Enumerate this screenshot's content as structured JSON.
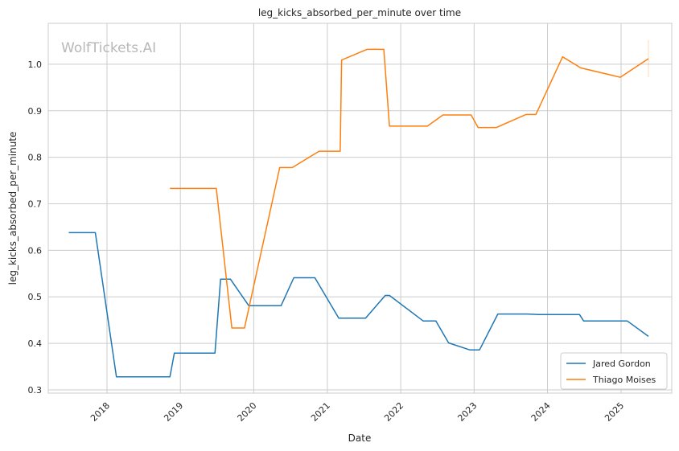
{
  "chart_data": {
    "type": "line",
    "title": "leg_kicks_absorbed_per_minute over time",
    "xlabel": "Date",
    "ylabel": "leg_kicks_absorbed_per_minute",
    "watermark": "WolfTickets.AI",
    "x_ticks": [
      "2018",
      "2019",
      "2020",
      "2021",
      "2022",
      "2023",
      "2024",
      "2025"
    ],
    "y_ticks": [
      "0.3",
      "0.4",
      "0.5",
      "0.6",
      "0.7",
      "0.8",
      "0.9",
      "1.0"
    ],
    "xlim": [
      "2017-03-15",
      "2025-09-10"
    ],
    "ylim": [
      0.293,
      1.088
    ],
    "grid": true,
    "legend_position": "bottom-right",
    "series": [
      {
        "name": "Jared Gordon",
        "color": "#1f77b4",
        "points": [
          [
            "2017-06-25",
            0.638
          ],
          [
            "2017-11-04",
            0.638
          ],
          [
            "2018-02-17",
            0.328
          ],
          [
            "2018-11-10",
            0.328
          ],
          [
            "2018-12-02",
            0.379
          ],
          [
            "2019-06-22",
            0.379
          ],
          [
            "2019-07-20",
            0.538
          ],
          [
            "2019-09-07",
            0.538
          ],
          [
            "2019-12-07",
            0.481
          ],
          [
            "2020-05-16",
            0.481
          ],
          [
            "2020-07-18",
            0.541
          ],
          [
            "2020-10-31",
            0.541
          ],
          [
            "2021-02-27",
            0.454
          ],
          [
            "2021-07-10",
            0.454
          ],
          [
            "2021-10-16",
            0.503
          ],
          [
            "2021-11-06",
            0.503
          ],
          [
            "2022-04-23",
            0.448
          ],
          [
            "2022-06-25",
            0.448
          ],
          [
            "2022-08-27",
            0.401
          ],
          [
            "2022-12-10",
            0.386
          ],
          [
            "2023-01-28",
            0.386
          ],
          [
            "2023-04-29",
            0.463
          ],
          [
            "2023-09-23",
            0.463
          ],
          [
            "2023-11-18",
            0.462
          ],
          [
            "2024-06-08",
            0.462
          ],
          [
            "2024-06-29",
            0.448
          ],
          [
            "2025-02-01",
            0.448
          ],
          [
            "2025-05-17",
            0.415
          ]
        ]
      },
      {
        "name": "Thiago Moises",
        "color": "#ff7f0e",
        "points": [
          [
            "2018-11-10",
            0.733
          ],
          [
            "2019-06-29",
            0.733
          ],
          [
            "2019-09-14",
            0.433
          ],
          [
            "2019-11-16",
            0.433
          ],
          [
            "2020-05-09",
            0.778
          ],
          [
            "2020-07-11",
            0.778
          ],
          [
            "2020-11-21",
            0.813
          ],
          [
            "2021-03-06",
            0.813
          ],
          [
            "2021-03-13",
            1.009
          ],
          [
            "2021-07-17",
            1.032
          ],
          [
            "2021-10-09",
            1.032
          ],
          [
            "2021-11-06",
            0.867
          ],
          [
            "2022-05-14",
            0.867
          ],
          [
            "2022-07-30",
            0.891
          ],
          [
            "2022-12-17",
            0.891
          ],
          [
            "2023-01-21",
            0.864
          ],
          [
            "2023-04-22",
            0.864
          ],
          [
            "2023-09-16",
            0.892
          ],
          [
            "2023-11-04",
            0.892
          ],
          [
            "2024-03-16",
            1.016
          ],
          [
            "2024-06-15",
            0.992
          ],
          [
            "2024-12-28",
            0.972
          ],
          [
            "2025-05-17",
            1.012
          ]
        ]
      }
    ]
  }
}
